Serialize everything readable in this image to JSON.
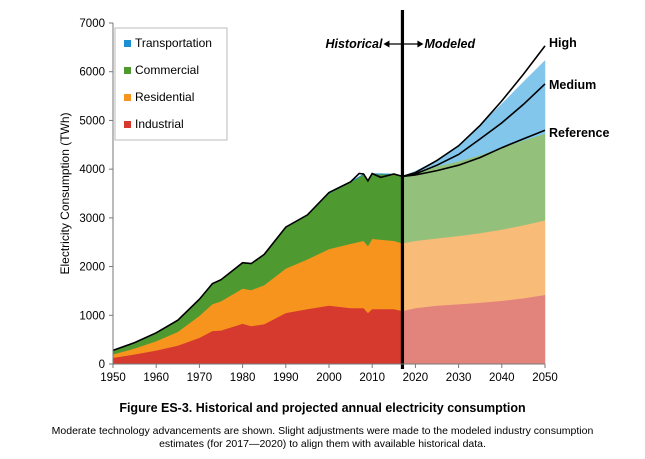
{
  "chart_data": {
    "type": "area",
    "title": "Figure ES-3. Historical and projected annual electricity consumption",
    "caption": "Moderate technology advancements are shown. Slight adjustments were made to the modeled industry consumption estimates (for 2017—2020) to align them with available historical data.",
    "xlabel": "",
    "ylabel": "Electricity Consumption (TWh)",
    "xlim": [
      1950,
      2050
    ],
    "ylim": [
      0,
      7000
    ],
    "x_ticks": [
      "1950",
      "1960",
      "1970",
      "1980",
      "1990",
      "2000",
      "2010",
      "2020",
      "2030",
      "2040",
      "2050"
    ],
    "y_ticks": [
      "0",
      "1000",
      "2000",
      "3000",
      "4000",
      "5000",
      "6000",
      "7000"
    ],
    "legend_position": "top-left",
    "grid": false,
    "split_year": 2017,
    "period_labels": {
      "historical": "Historical",
      "modeled": "Modeled"
    },
    "colors": {
      "Industrial": "#d63a2e",
      "Residential": "#f7941d",
      "Commercial": "#4e9a31",
      "Transportation": "#1b8fd2",
      "Industrial_modeled": "#e3847c",
      "Residential_modeled": "#f9bb78",
      "Commercial_modeled": "#93c17c",
      "Transportation_modeled": "#82c6ec"
    },
    "series": [
      {
        "name": "Industrial",
        "x": [
          1950,
          1955,
          1960,
          1965,
          1970,
          1973,
          1975,
          1980,
          1982,
          1985,
          1990,
          1995,
          2000,
          2005,
          2008,
          2009,
          2010,
          2015,
          2017,
          2020,
          2025,
          2030,
          2035,
          2040,
          2045,
          2050
        ],
        "values": [
          130,
          200,
          280,
          380,
          540,
          680,
          690,
          830,
          780,
          820,
          1050,
          1130,
          1200,
          1150,
          1150,
          1050,
          1130,
          1130,
          1090,
          1150,
          1200,
          1230,
          1260,
          1300,
          1350,
          1420
        ]
      },
      {
        "name": "Residential",
        "x": [
          1950,
          1955,
          1960,
          1965,
          1970,
          1973,
          1975,
          1980,
          1982,
          1985,
          1990,
          1995,
          2000,
          2005,
          2008,
          2009,
          2010,
          2015,
          2017,
          2020,
          2025,
          2030,
          2035,
          2040,
          2045,
          2050
        ],
        "values": [
          70,
          120,
          190,
          280,
          450,
          550,
          600,
          720,
          740,
          800,
          910,
          1020,
          1160,
          1320,
          1380,
          1370,
          1440,
          1400,
          1390,
          1380,
          1380,
          1400,
          1430,
          1460,
          1500,
          1530
        ]
      },
      {
        "name": "Commercial",
        "x": [
          1950,
          1955,
          1960,
          1965,
          1970,
          1973,
          1975,
          1980,
          1982,
          1985,
          1990,
          1995,
          2000,
          2005,
          2008,
          2009,
          2010,
          2015,
          2017,
          2020,
          2025,
          2030,
          2035,
          2040,
          2045,
          2050
        ],
        "values": [
          70,
          110,
          160,
          230,
          330,
          410,
          430,
          520,
          540,
          620,
          840,
          900,
          1140,
          1260,
          1360,
          1350,
          1330,
          1360,
          1360,
          1400,
          1480,
          1530,
          1600,
          1680,
          1740,
          1780
        ]
      },
      {
        "name": "Transportation",
        "x": [
          1950,
          1955,
          1960,
          1965,
          1970,
          1973,
          1975,
          1980,
          1982,
          1985,
          1990,
          1995,
          2000,
          2005,
          2008,
          2009,
          2010,
          2015,
          2017,
          2020,
          2025,
          2030,
          2035,
          2040,
          2045,
          2050
        ],
        "values": [
          10,
          10,
          10,
          10,
          10,
          10,
          10,
          10,
          10,
          10,
          10,
          10,
          10,
          10,
          10,
          10,
          10,
          10,
          10,
          30,
          120,
          330,
          620,
          900,
          1200,
          1500
        ]
      }
    ],
    "total_historical": {
      "x": [
        1950,
        1955,
        1960,
        1965,
        1970,
        1973,
        1975,
        1980,
        1982,
        1985,
        1990,
        1995,
        2000,
        2005,
        2007,
        2008,
        2009,
        2010,
        2012,
        2015,
        2017
      ],
      "values": [
        280,
        440,
        640,
        900,
        1330,
        1650,
        1730,
        2080,
        2060,
        2250,
        2810,
        3060,
        3520,
        3740,
        3910,
        3900,
        3760,
        3910,
        3830,
        3900,
        3850
      ]
    },
    "scenario_lines": [
      {
        "name": "High",
        "x": [
          2017,
          2020,
          2025,
          2030,
          2035,
          2040,
          2045,
          2050
        ],
        "values": [
          3850,
          3930,
          4180,
          4480,
          4900,
          5400,
          5950,
          6530
        ]
      },
      {
        "name": "Medium",
        "x": [
          2017,
          2020,
          2025,
          2030,
          2035,
          2040,
          2045,
          2050
        ],
        "values": [
          3850,
          3900,
          4080,
          4300,
          4620,
          4950,
          5330,
          5750
        ]
      },
      {
        "name": "Reference",
        "x": [
          2017,
          2020,
          2025,
          2030,
          2035,
          2040,
          2045,
          2050
        ],
        "values": [
          3850,
          3880,
          3970,
          4080,
          4240,
          4440,
          4620,
          4800
        ]
      }
    ]
  }
}
